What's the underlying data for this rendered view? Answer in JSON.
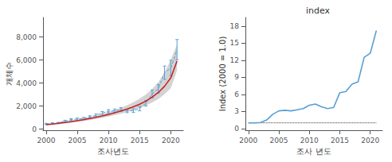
{
  "chart_data": [
    {
      "type": "line",
      "xlabel": "조사년도",
      "ylabel": "개체수",
      "x": [
        2000,
        2001,
        2002,
        2003,
        2004,
        2005,
        2006,
        2007,
        2008,
        2009,
        2010,
        2011,
        2012,
        2013,
        2014,
        2015,
        2016,
        2017,
        2018,
        2019,
        2020,
        2021
      ],
      "series": [
        {
          "type": "area",
          "lower": [
            325,
            375,
            430,
            490,
            555,
            625,
            700,
            785,
            875,
            975,
            1085,
            1205,
            1335,
            1480,
            1645,
            1830,
            2040,
            2310,
            2610,
            3030,
            3560,
            5100
          ],
          "upper": [
            440,
            510,
            580,
            660,
            745,
            840,
            945,
            1060,
            1185,
            1325,
            1480,
            1655,
            1850,
            2075,
            2330,
            2640,
            3010,
            3480,
            4080,
            4920,
            6050,
            7350
          ],
          "color": "#c8c8c8"
        },
        {
          "type": "line",
          "values": [
            450,
            490,
            530,
            700,
            820,
            870,
            920,
            1050,
            1200,
            1400,
            1550,
            1600,
            1700,
            1580,
            1600,
            1780,
            2250,
            3050,
            3500,
            4900,
            5300,
            6900
          ],
          "errors": [
            50,
            55,
            60,
            70,
            80,
            90,
            95,
            110,
            120,
            130,
            140,
            150,
            160,
            150,
            160,
            190,
            240,
            340,
            380,
            580,
            680,
            880
          ],
          "color": "#5a9fd4",
          "line_style": "dashed"
        },
        {
          "type": "line",
          "values": [
            380,
            440,
            500,
            570,
            645,
            725,
            815,
            915,
            1020,
            1140,
            1270,
            1415,
            1570,
            1745,
            1940,
            2160,
            2430,
            2770,
            3180,
            3720,
            4450,
            5900
          ],
          "color": "#cc2222",
          "line_style": "solid"
        }
      ],
      "xlim": [
        1999.5,
        2022
      ],
      "xticks": [
        2000,
        2005,
        2010,
        2015,
        2020
      ],
      "ylim": [
        -100,
        9700
      ],
      "yticks": [
        0,
        {
          "value": 2000,
          "label": "2,000"
        },
        {
          "value": 4000,
          "label": "4,000"
        },
        {
          "value": 6000,
          "label": "6,000"
        },
        {
          "value": 8000,
          "label": "8,000"
        }
      ],
      "grid": false
    },
    {
      "type": "line",
      "title": "index",
      "xlabel": "조사 년도",
      "ylabel": "Index (2000 = 1.0)",
      "x": [
        2000,
        2001,
        2002,
        2003,
        2004,
        2005,
        2006,
        2007,
        2008,
        2009,
        2010,
        2011,
        2012,
        2013,
        2014,
        2015,
        2016,
        2017,
        2018,
        2019,
        2020,
        2021
      ],
      "series": [
        {
          "type": "line",
          "values": [
            1.0,
            1.0,
            1.05,
            1.5,
            2.5,
            3.1,
            3.2,
            3.1,
            3.3,
            3.5,
            4.1,
            4.3,
            3.8,
            3.5,
            3.7,
            6.3,
            6.5,
            7.8,
            8.2,
            12.5,
            13.2,
            17.2
          ],
          "color": "#5a9fd4",
          "line_style": "solid"
        },
        {
          "type": "line",
          "values": [
            1.0,
            1.0,
            1.0,
            1.0,
            1.0,
            1.0,
            1.0,
            1.0,
            1.0,
            1.0,
            1.0,
            1.0,
            1.0,
            1.0,
            1.0,
            1.0,
            1.0,
            1.0,
            1.0,
            1.0,
            1.0,
            1.0
          ],
          "color": "#333333",
          "line_style": "dotted"
        }
      ],
      "xlim": [
        1999.5,
        2022
      ],
      "xticks": [
        2000,
        2005,
        2010,
        2015,
        2020
      ],
      "ylim": [
        -0.3,
        19.5
      ],
      "yticks": [
        0,
        3,
        6,
        9,
        12,
        15,
        18
      ],
      "grid": false
    }
  ]
}
